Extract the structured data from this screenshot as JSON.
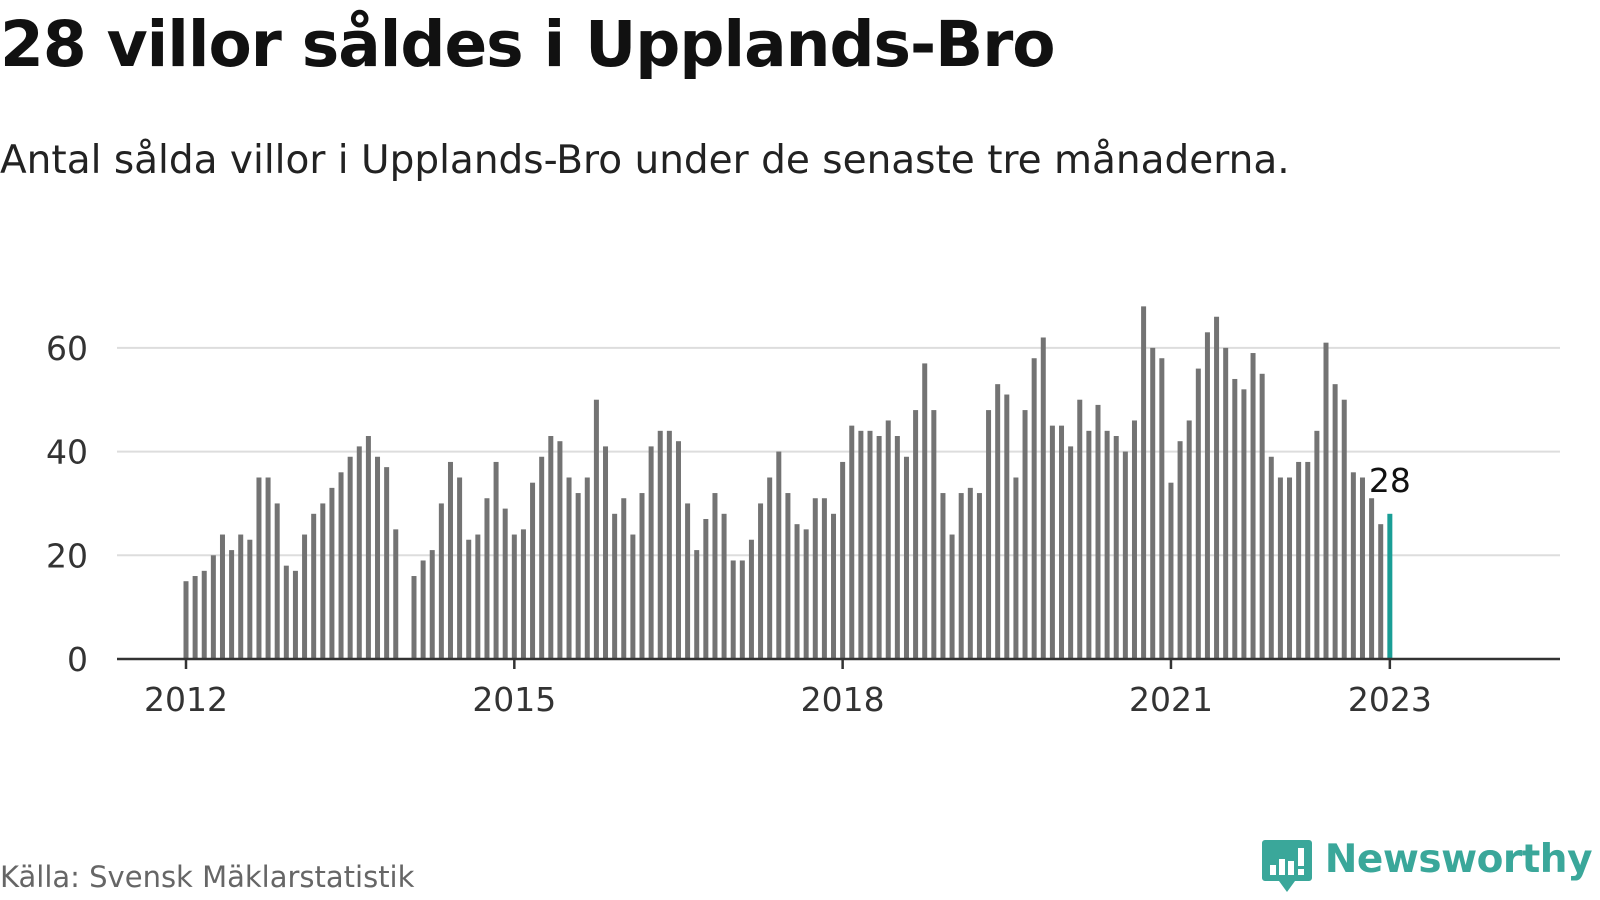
{
  "title": "28 villor såldes i Upplands-Bro",
  "subtitle": "Antal sålda villor i Upplands-Bro under de senaste tre månaderna.",
  "source": "Källa: Svensk Mäklarstatistik",
  "brand": {
    "name": "Newsworthy",
    "icon": "newsworthy-logo-icon",
    "color": "#3aa79a"
  },
  "colors": {
    "bar": "#737373",
    "highlight": "#1a9e96",
    "grid": "#dddddd",
    "axis": "#333333"
  },
  "chart_data": {
    "type": "bar",
    "title": "",
    "xlabel": "",
    "ylabel": "",
    "ylim": [
      0,
      70
    ],
    "yticks": [
      "0",
      "20",
      "40",
      "60"
    ],
    "xticks": [
      "2012",
      "2015",
      "2018",
      "2021",
      "2023"
    ],
    "grid": true,
    "highlight_label": "28",
    "x": [
      "2012-01",
      "2012-02",
      "2012-03",
      "2012-04",
      "2012-05",
      "2012-06",
      "2012-07",
      "2012-08",
      "2012-09",
      "2012-10",
      "2012-11",
      "2012-12",
      "2013-01",
      "2013-02",
      "2013-03",
      "2013-04",
      "2013-05",
      "2013-06",
      "2013-07",
      "2013-08",
      "2013-09",
      "2013-10",
      "2013-11",
      "2013-12",
      "2014-01",
      "2014-02",
      "2014-03",
      "2014-04",
      "2014-05",
      "2014-06",
      "2014-07",
      "2014-08",
      "2014-09",
      "2014-10",
      "2014-11",
      "2014-12",
      "2015-01",
      "2015-02",
      "2015-03",
      "2015-04",
      "2015-05",
      "2015-06",
      "2015-07",
      "2015-08",
      "2015-09",
      "2015-10",
      "2015-11",
      "2015-12",
      "2016-01",
      "2016-02",
      "2016-03",
      "2016-04",
      "2016-05",
      "2016-06",
      "2016-07",
      "2016-08",
      "2016-09",
      "2016-10",
      "2016-11",
      "2016-12",
      "2017-01",
      "2017-02",
      "2017-03",
      "2017-04",
      "2017-05",
      "2017-06",
      "2017-07",
      "2017-08",
      "2017-09",
      "2017-10",
      "2017-11",
      "2017-12",
      "2018-01",
      "2018-02",
      "2018-03",
      "2018-04",
      "2018-05",
      "2018-06",
      "2018-07",
      "2018-08",
      "2018-09",
      "2018-10",
      "2018-11",
      "2018-12",
      "2019-01",
      "2019-02",
      "2019-03",
      "2019-04",
      "2019-05",
      "2019-06",
      "2019-07",
      "2019-08",
      "2019-09",
      "2019-10",
      "2019-11",
      "2019-12",
      "2020-01",
      "2020-02",
      "2020-03",
      "2020-04",
      "2020-05",
      "2020-06",
      "2020-07",
      "2020-08",
      "2020-09",
      "2020-10",
      "2020-11",
      "2020-12",
      "2021-01",
      "2021-02",
      "2021-03",
      "2021-04",
      "2021-05",
      "2021-06",
      "2021-07",
      "2021-08",
      "2021-09",
      "2021-10",
      "2021-11",
      "2021-12",
      "2022-01",
      "2022-02",
      "2022-03",
      "2022-04",
      "2022-05",
      "2022-06",
      "2022-07",
      "2022-08",
      "2022-09",
      "2022-10",
      "2022-11",
      "2022-12",
      "2023-01"
    ],
    "values": [
      15,
      16,
      17,
      20,
      24,
      21,
      24,
      23,
      35,
      35,
      30,
      18,
      17,
      24,
      28,
      30,
      33,
      36,
      39,
      41,
      43,
      39,
      37,
      25,
      null,
      16,
      19,
      21,
      30,
      38,
      35,
      23,
      24,
      31,
      38,
      29,
      24,
      25,
      34,
      39,
      43,
      42,
      35,
      32,
      35,
      50,
      41,
      28,
      31,
      24,
      32,
      41,
      44,
      44,
      42,
      30,
      21,
      27,
      32,
      28,
      19,
      19,
      23,
      30,
      35,
      40,
      32,
      26,
      25,
      31,
      31,
      28,
      38,
      45,
      44,
      44,
      43,
      46,
      43,
      39,
      48,
      57,
      48,
      32,
      24,
      32,
      33,
      32,
      48,
      53,
      51,
      35,
      48,
      58,
      62,
      45,
      45,
      41,
      50,
      44,
      49,
      44,
      43,
      40,
      46,
      68,
      60,
      58,
      34,
      42,
      46,
      56,
      63,
      66,
      60,
      54,
      52,
      59,
      55,
      39,
      35,
      35,
      38,
      38,
      44,
      61,
      53,
      50,
      36,
      35,
      31,
      26,
      28
    ]
  }
}
